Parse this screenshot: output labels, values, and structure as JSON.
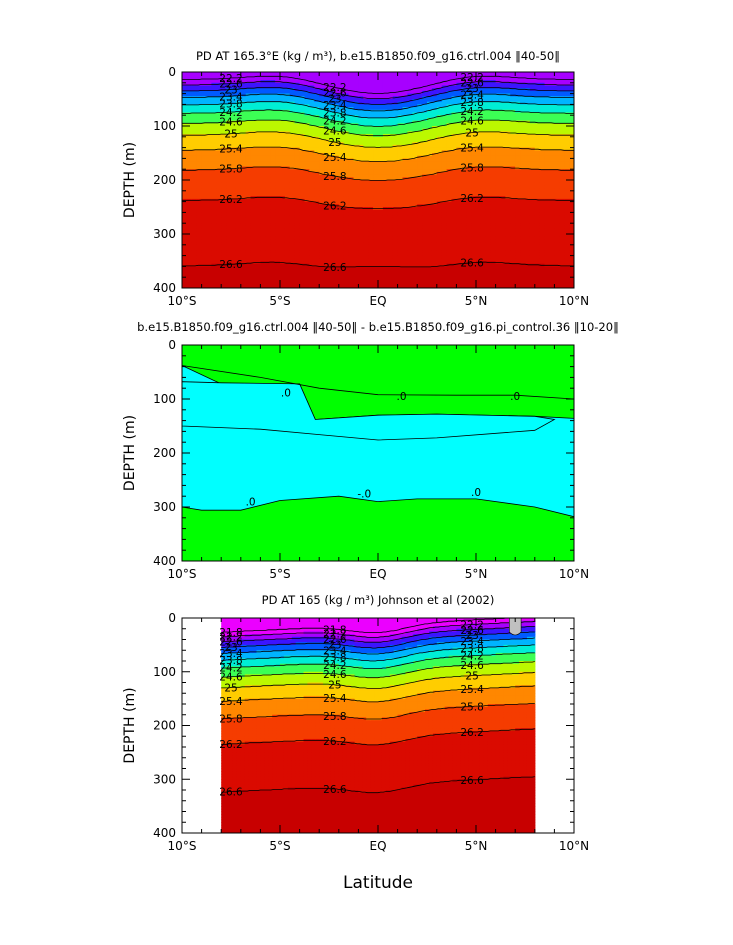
{
  "colors": {
    "magenta": "#ff00ff",
    "purple": "#b200ff",
    "blue": "#0000ff",
    "cyan": "#00ffff",
    "green": "#00ff00",
    "yellow": "#ffff00",
    "orange": "#ff8c00",
    "red": "#cc0000",
    "land_gray": "#c0c0c0"
  },
  "chart_data": [
    {
      "type": "heatmap",
      "subtype": "contour",
      "title": "PD AT 165.3°E (kg / m³), b.e15.B1850.f09_g16.ctrl.004 ‖40-50‖",
      "ylabel": "DEPTH (m)",
      "xlabel": "",
      "x_ticklabels": [
        "10°S",
        "5°S",
        "EQ",
        "5°N",
        "10°N"
      ],
      "x_ticks": [
        -10,
        -5,
        0,
        5,
        10
      ],
      "y_ticks": [
        0,
        100,
        200,
        300,
        400
      ],
      "xlim": [
        -10,
        10
      ],
      "ylim": [
        400,
        0
      ],
      "contour_levels": [
        22.2,
        22.6,
        23,
        23.4,
        23.8,
        24.2,
        24.6,
        25,
        25.4,
        25.8,
        26.2,
        26.6
      ],
      "contour_labels": [
        "22.2",
        "22.6",
        "23",
        "23.4",
        "23.8",
        "24.2",
        "24.6",
        "25",
        "25.4",
        "25.8",
        "26.2",
        "26.6"
      ],
      "grid": false
    },
    {
      "type": "heatmap",
      "subtype": "contour",
      "title": "b.e15.B1850.f09_g16.ctrl.004 ‖40-50‖ - b.e15.B1850.f09_g16.pi_control.36 ‖10-20‖",
      "ylabel": "DEPTH (m)",
      "xlabel": "",
      "x_ticklabels": [
        "10°S",
        "5°S",
        "EQ",
        "5°N",
        "10°N"
      ],
      "x_ticks": [
        -10,
        -5,
        0,
        5,
        10
      ],
      "y_ticks": [
        0,
        100,
        200,
        300,
        400
      ],
      "xlim": [
        -10,
        10
      ],
      "ylim": [
        400,
        0
      ],
      "contour_levels": [
        0
      ],
      "contour_labels": [
        ".0",
        ".0",
        ".0",
        ".0",
        "-.0",
        ".0"
      ],
      "grid": false
    },
    {
      "type": "heatmap",
      "subtype": "contour",
      "title": "PD AT 165 (kg / m³) Johnson et al (2002)",
      "ylabel": "DEPTH (m)",
      "xlabel": "Latitude",
      "x_ticklabels": [
        "10°S",
        "5°S",
        "EQ",
        "5°N",
        "10°N"
      ],
      "x_ticks": [
        -10,
        -5,
        0,
        5,
        10
      ],
      "y_ticks": [
        0,
        100,
        200,
        300,
        400
      ],
      "xlim": [
        -10,
        10
      ],
      "ylim": [
        400,
        0
      ],
      "data_extent_lat": [
        -8,
        8
      ],
      "contour_levels": [
        21.8,
        22.2,
        22.6,
        23,
        23.4,
        23.8,
        24.2,
        24.6,
        25,
        25.4,
        25.8,
        26.2,
        26.6
      ],
      "contour_labels": [
        "21.8",
        "22.2",
        "22.6",
        "23",
        "23.4",
        "23.8",
        "24.2",
        "24.6",
        "25",
        "25.4",
        "25.8",
        "26.2",
        "26.6"
      ],
      "grid": false
    }
  ]
}
